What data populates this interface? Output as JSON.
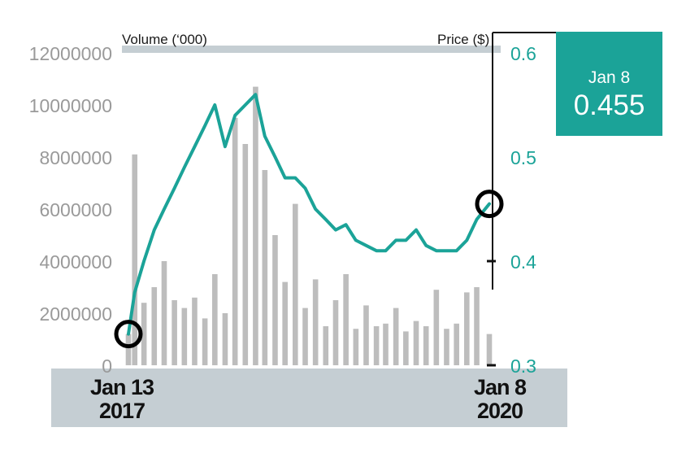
{
  "header": {
    "volume_label": "Volume (‘000)",
    "price_label": "Price ($)"
  },
  "callout": {
    "date": "Jan 8",
    "value": "0.455"
  },
  "x_axis": {
    "start": [
      "Jan 13",
      "2017"
    ],
    "end": [
      "Jan 8",
      "2020"
    ]
  },
  "chart_data": {
    "type": "line",
    "x_range": [
      "2017-01-13",
      "2020-01-08"
    ],
    "y_left": {
      "label": "Volume (‘000)",
      "range": [
        0,
        12000000
      ],
      "ticks": [
        0,
        2000000,
        4000000,
        6000000,
        8000000,
        10000000,
        12000000
      ]
    },
    "y_right": {
      "label": "Price ($)",
      "range": [
        0.3,
        0.6
      ],
      "ticks": [
        0.3,
        0.4,
        0.5,
        0.6
      ]
    },
    "series": [
      {
        "type": "line",
        "axis": "right",
        "color": "#1ba398",
        "x": [
          "2017-01-13",
          "2017-02-01",
          "2017-03-01",
          "2017-04-01",
          "2017-05-01",
          "2017-06-01",
          "2017-07-01",
          "2017-08-01",
          "2017-09-01",
          "2017-10-01",
          "2017-11-01",
          "2017-12-01",
          "2018-01-01",
          "2018-02-01",
          "2018-03-01",
          "2018-04-01",
          "2018-05-01",
          "2018-06-01",
          "2018-07-01",
          "2018-08-01",
          "2018-09-01",
          "2018-10-01",
          "2018-11-01",
          "2018-12-01",
          "2019-01-01",
          "2019-02-01",
          "2019-03-01",
          "2019-04-01",
          "2019-05-01",
          "2019-06-01",
          "2019-07-01",
          "2019-08-01",
          "2019-09-01",
          "2019-10-01",
          "2019-11-01",
          "2019-12-01",
          "2020-01-08"
        ],
        "y": [
          0.33,
          0.37,
          0.4,
          0.43,
          0.45,
          0.47,
          0.49,
          0.51,
          0.53,
          0.55,
          0.51,
          0.54,
          0.55,
          0.56,
          0.52,
          0.5,
          0.48,
          0.48,
          0.47,
          0.45,
          0.44,
          0.43,
          0.435,
          0.42,
          0.415,
          0.41,
          0.41,
          0.42,
          0.42,
          0.43,
          0.415,
          0.41,
          0.41,
          0.41,
          0.42,
          0.44,
          0.455
        ]
      },
      {
        "type": "bar",
        "axis": "left",
        "color": "#bdbdbd",
        "x": [
          "2017-01-13",
          "2017-02-01",
          "2017-03-01",
          "2017-04-01",
          "2017-05-01",
          "2017-06-01",
          "2017-07-01",
          "2017-08-01",
          "2017-09-01",
          "2017-10-01",
          "2017-11-01",
          "2017-12-01",
          "2018-01-01",
          "2018-02-01",
          "2018-03-01",
          "2018-04-01",
          "2018-05-01",
          "2018-06-01",
          "2018-07-01",
          "2018-08-01",
          "2018-09-01",
          "2018-10-01",
          "2018-11-01",
          "2018-12-01",
          "2019-01-01",
          "2019-02-01",
          "2019-03-01",
          "2019-04-01",
          "2019-05-01",
          "2019-06-01",
          "2019-07-01",
          "2019-08-01",
          "2019-09-01",
          "2019-10-01",
          "2019-11-01",
          "2019-12-01",
          "2020-01-08"
        ],
        "y": [
          1200000,
          8100000,
          2400000,
          3000000,
          4000000,
          2500000,
          2200000,
          2600000,
          1800000,
          3500000,
          2000000,
          9500000,
          8500000,
          10700000,
          7500000,
          5000000,
          3200000,
          6200000,
          2200000,
          3300000,
          1500000,
          2500000,
          3500000,
          1400000,
          2300000,
          1500000,
          1600000,
          2200000,
          1300000,
          1700000,
          1500000,
          2900000,
          1400000,
          1600000,
          2800000,
          3000000,
          1200000
        ]
      }
    ],
    "annotations": [
      {
        "date": "2017-01-13",
        "price": 0.33,
        "marker": "circle"
      },
      {
        "date": "2020-01-08",
        "price": 0.455,
        "marker": "circle"
      }
    ],
    "grid": false,
    "legend": "none"
  }
}
